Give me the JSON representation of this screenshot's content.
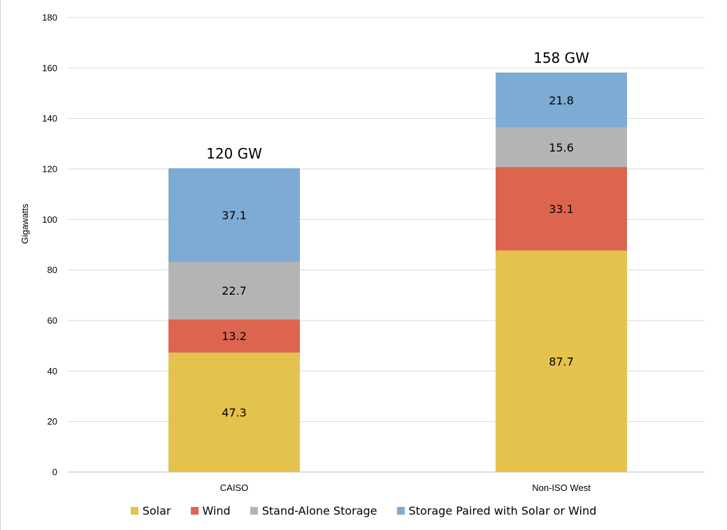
{
  "chart_data": {
    "type": "bar",
    "stacked": true,
    "title": "",
    "xlabel": "",
    "ylabel": "Gigawatts",
    "ylim": [
      0,
      180
    ],
    "yticks": [
      0,
      20,
      40,
      60,
      80,
      100,
      120,
      140,
      160,
      180
    ],
    "grid": true,
    "legend_position": "bottom",
    "categories": [
      "CAISO",
      "Non-ISO West"
    ],
    "totals": [
      "120 GW",
      "158 GW"
    ],
    "series": [
      {
        "name": "Solar",
        "color": "#e3c24d",
        "values": [
          47.3,
          87.7
        ],
        "labels": [
          "47.3",
          "87.7"
        ]
      },
      {
        "name": "Wind",
        "color": "#dd6550",
        "values": [
          13.2,
          33.1
        ],
        "labels": [
          "13.2",
          "33.1"
        ]
      },
      {
        "name": "Stand-Alone Storage",
        "color": "#b4b4b4",
        "values": [
          22.7,
          15.6
        ],
        "labels": [
          "22.7",
          "15.6"
        ]
      },
      {
        "name": "Storage Paired with Solar or Wind",
        "color": "#7eabd4",
        "values": [
          37.1,
          21.8
        ],
        "labels": [
          "37.1",
          "21.8"
        ]
      }
    ]
  }
}
